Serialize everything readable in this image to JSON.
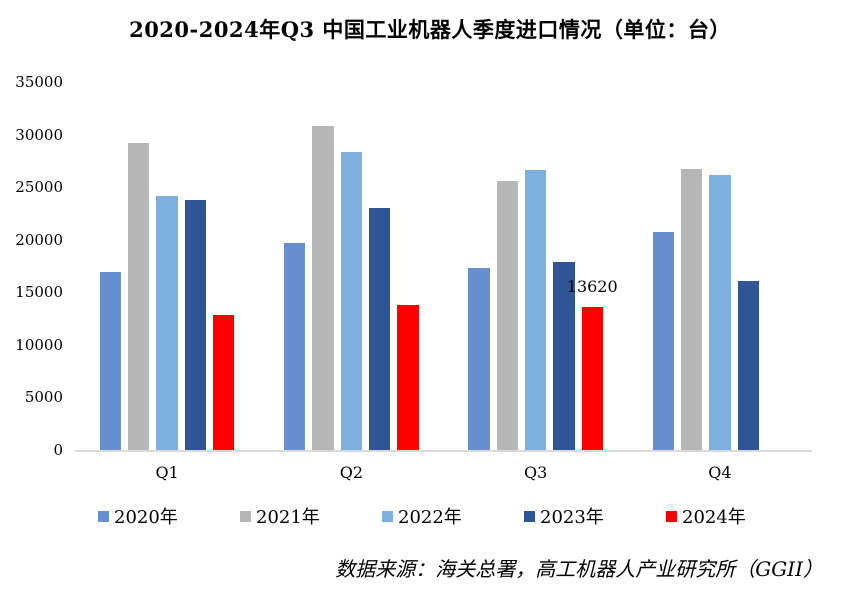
{
  "source_note": "数据来源：海关总署，高工机器人产业研究所（GGII）",
  "chart_data": {
    "type": "bar",
    "title": "2020-2024年Q3 中国工业机器人季度进口情况（单位：台）",
    "categories": [
      "Q1",
      "Q2",
      "Q3",
      "Q4"
    ],
    "series": [
      {
        "name": "2020年",
        "color": "#698ED0",
        "values": [
          16900,
          19700,
          17300,
          20700
        ]
      },
      {
        "name": "2021年",
        "color": "#B7B7B7",
        "values": [
          29200,
          30800,
          25600,
          26700
        ]
      },
      {
        "name": "2022年",
        "color": "#7CAFDD",
        "values": [
          24200,
          28300,
          26600,
          26200
        ]
      },
      {
        "name": "2023年",
        "color": "#2F5597",
        "values": [
          23800,
          23000,
          17900,
          16100
        ]
      },
      {
        "name": "2024年",
        "color": "#FF0000",
        "values": [
          12800,
          13800,
          13620,
          null
        ]
      }
    ],
    "ylim": [
      0,
      35000
    ],
    "ytick_interval": 5000,
    "yticks": [
      0,
      5000,
      10000,
      15000,
      20000,
      25000,
      30000,
      35000
    ],
    "xlabel": "",
    "ylabel": "",
    "grid": false,
    "legend_position": "bottom",
    "data_labels": [
      {
        "series": "2024年",
        "category": "Q3",
        "text": "13620"
      }
    ]
  }
}
